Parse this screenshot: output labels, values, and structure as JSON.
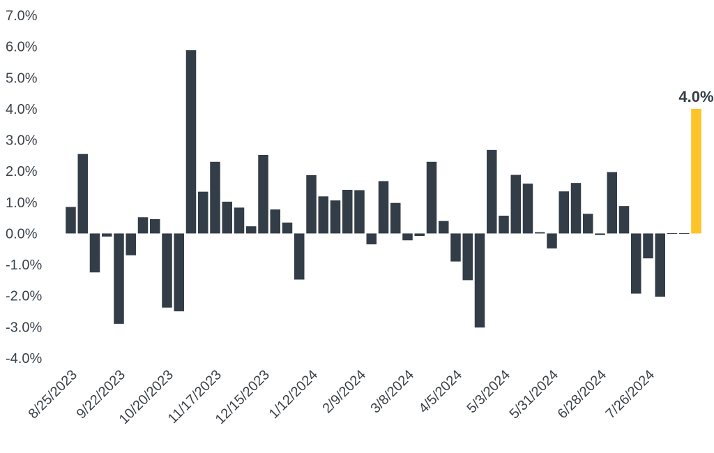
{
  "chart_data": {
    "type": "bar",
    "title": "",
    "xlabel": "",
    "ylabel": "",
    "ylim": [
      -4.0,
      7.0
    ],
    "y_ticks": [
      "7.0%",
      "6.0%",
      "5.0%",
      "4.0%",
      "3.0%",
      "2.0%",
      "1.0%",
      "0.0%",
      "-1.0%",
      "-2.0%",
      "-3.0%",
      "-4.0%"
    ],
    "y_tick_values": [
      7,
      6,
      5,
      4,
      3,
      2,
      1,
      0,
      -1,
      -2,
      -3,
      -4
    ],
    "x_tick_labels": [
      "8/25/2023",
      "9/22/2023",
      "10/20/2023",
      "11/17/2023",
      "12/15/2023",
      "1/12/2024",
      "2/9/2024",
      "3/8/2024",
      "4/5/2024",
      "5/3/2024",
      "5/31/2024",
      "6/28/2024",
      "7/26/2024"
    ],
    "x_tick_every": 4,
    "grid": false,
    "colors": {
      "bar": "#333d47",
      "highlight": "#fcc428",
      "text": "#3b434b"
    },
    "highlight_index": 52,
    "data_label": "4.0%",
    "values": [
      0.85,
      2.55,
      -1.25,
      -0.1,
      -2.9,
      -0.7,
      0.52,
      0.46,
      -2.38,
      -2.5,
      5.88,
      1.34,
      2.3,
      1.02,
      0.83,
      0.23,
      2.52,
      0.77,
      0.35,
      -1.48,
      1.87,
      1.19,
      1.06,
      1.4,
      1.39,
      -0.35,
      1.68,
      0.98,
      -0.22,
      -0.08,
      2.3,
      0.4,
      -0.9,
      -1.5,
      -3.02,
      2.68,
      0.57,
      1.88,
      1.6,
      0.04,
      -0.48,
      1.35,
      1.62,
      0.63,
      -0.05,
      1.97,
      0.88,
      -1.93,
      -0.8,
      -2.03,
      0.0,
      0.0,
      4.0
    ]
  }
}
